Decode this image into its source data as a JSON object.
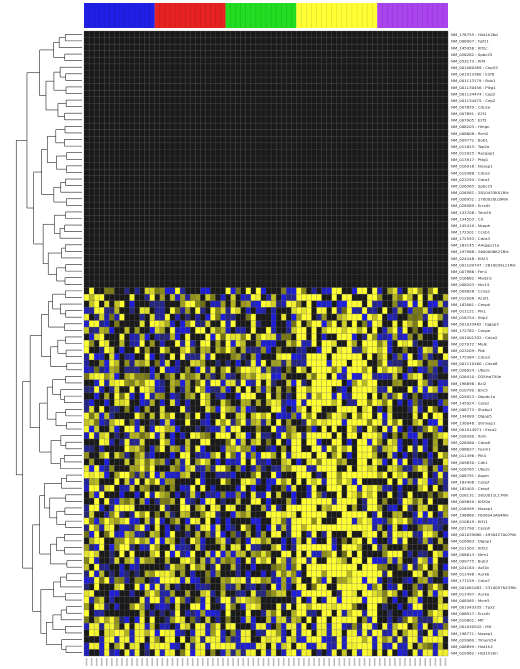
{
  "chart_data": {
    "type": "heatmap",
    "title": "",
    "xlabel": "",
    "ylabel": "",
    "colors": {
      "low": "#2a2acc",
      "mid": "#1a1a1a",
      "high": "#ffff33",
      "grid": "#555555",
      "dendrogram": "#222222"
    },
    "sample_groups": [
      {
        "count": 14,
        "color": "#1f1fe6"
      },
      {
        "count": 14,
        "color": "#e62222"
      },
      {
        "count": 14,
        "color": "#22dd22"
      },
      {
        "count": 16,
        "color": "#ffff33"
      },
      {
        "count": 14,
        "color": "#aa44ee"
      }
    ],
    "genes": [
      "NM_178755 : Hist1h2bd",
      "NM_008007 : Fgf11",
      "NM_145958 : Kif2c",
      "NM_026282 : Spbc25",
      "NM_053173 : Kif4",
      "NM_001080389 : Cep55",
      "NM_001013380 : E2f8",
      "NM_001113179 : Bub1",
      "NM_001130456 : Plkg1",
      "NM_001134474 : Cep2",
      "NM_001134475 : Cep2",
      "NM_007659 : Cdc2a",
      "NM_007891 : E2f1",
      "NM_007905 : E2f2",
      "NM_008203 : Hmgn",
      "NM_008608 : Rrm2",
      "NM_009772 : Bub1",
      "NM_011623 : Top2a",
      "NM_012025 : Racgap1",
      "NM_013917 : Pttg1",
      "NM_016916 : Nusap1",
      "NM_019388 : Cdca2",
      "NM_023294 : Cdca1",
      "NM_026565 : Spbc25",
      "NM_026581 : 2810433K01Rik",
      "NM_026952 : 1700020L09Rik",
      "NM_026589 : Ercc6l",
      "NM_133708 : Trim59",
      "NM_134503 : Cit",
      "NM_145410 : Ncaph",
      "NM_172301 : Ccnb1",
      "NM_172593 : Cdca3",
      "NM_183145 : A4rgap11a",
      "NM_197968 : 2600006K21Rik",
      "NM_024248 : Kif23",
      "NM_001109747 : 2610039L11Rik",
      "NM_007986 : Fen1",
      "NM_016682 : Mad2l1",
      "NM_008203 : Ncr15",
      "NM_009828 : Ccna2",
      "NM_012006 : Acot1",
      "NM_183061 : Cenpk",
      "NM_011121 : Plk1",
      "NM_016754 : Stip2",
      "NM_001033482 : Iqgap3",
      "NM_172762 : Cenpe",
      "NM_001001332 : Cdca2",
      "NM_027972 : Melk",
      "NM_023209 : Pbk",
      "NM_175384 : Cdca3",
      "NM_001110160 : Cdca8",
      "NM_026024 : Ube2c",
      "NM_026410 : D2Ertd750e",
      "NM_198898 : Bcl2",
      "NM_010790 : Birc5",
      "NM_029023 : Depdc1a",
      "NM_145924 : Cenpi",
      "NM_008773 : Shcbp1",
      "NM_134089 : Dlgap5",
      "NM_130046 : Stmnap1",
      "NM_001014971 : Esco2",
      "NM_028390 : Anln",
      "NM_026560 : Cdca8",
      "NM_008637 : Foxm1",
      "NM_011496 : Plk4",
      "NM_009830 : Cdk1",
      "NM_026785 : Ube2c",
      "NM_008791 : Aspm",
      "NM_183406 : Cenpf",
      "NM_183405 : Cenpf",
      "NM_028131 : 2810011L17Rik",
      "NM_009650 : Kif20a",
      "NM_016499 : Nusap1",
      "NM_198860 : F630043A04Rik",
      "NM_010619 : Kif11",
      "NM_021790 : Cenph",
      "NM_001039080 : 4930427A07Rik",
      "NM_026983 : Dlgap1",
      "NM_011503 : Kif22",
      "NM_008613 : Nrm1",
      "NM_009775 : Bub3",
      "NM_024184 : Asf1b",
      "NM_011496 : Aurkb",
      "NM_177159 : Cdca7",
      "NM_001081083 : 2310057N15Rik",
      "NM_011497 : Aurka",
      "NM_008565 : Mcm5",
      "NM_001043335 : Tpx2",
      "NM_008917 : Ercc6l",
      "NM_010801 : Mif",
      "NM_001030542 : Mif",
      "NM_198771 : Nusap1",
      "NM_029960 : Trmem54",
      "NM_008899 : Hist1h2",
      "NM_029962 : Hist1h2bn"
    ]
  }
}
